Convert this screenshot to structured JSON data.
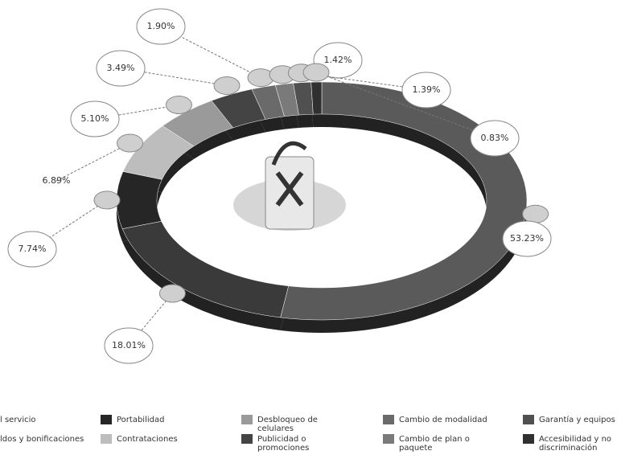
{
  "chart_data": {
    "type": "pie",
    "categories": [
      "l servicio",
      "ldos y bonificaciones",
      "Portabilidad",
      "Contrataciones",
      "Desbloqueo de celulares",
      "Publicidad o promociones",
      "Cambio de modalidad",
      "Cambio de plan o paquete",
      "Garantía y equipos",
      "Accesibilidad y no discriminación"
    ],
    "values": [
      53.23,
      18.01,
      7.74,
      6.89,
      5.1,
      3.49,
      1.9,
      1.42,
      1.39,
      0.83
    ],
    "value_labels": [
      "53.23%",
      "18.01%",
      "7.74%",
      "6.89%",
      "5.10%",
      "3.49%",
      "1.90%",
      "1.42%",
      "1.39%",
      "0.83%"
    ],
    "colors": [
      "#5a5a5a",
      "#3a3a3a",
      "#262626",
      "#bdbdbd",
      "#9a9a9a",
      "#444444",
      "#6a6a6a",
      "#7a7a7a",
      "#505050",
      "#303030"
    ]
  }
}
